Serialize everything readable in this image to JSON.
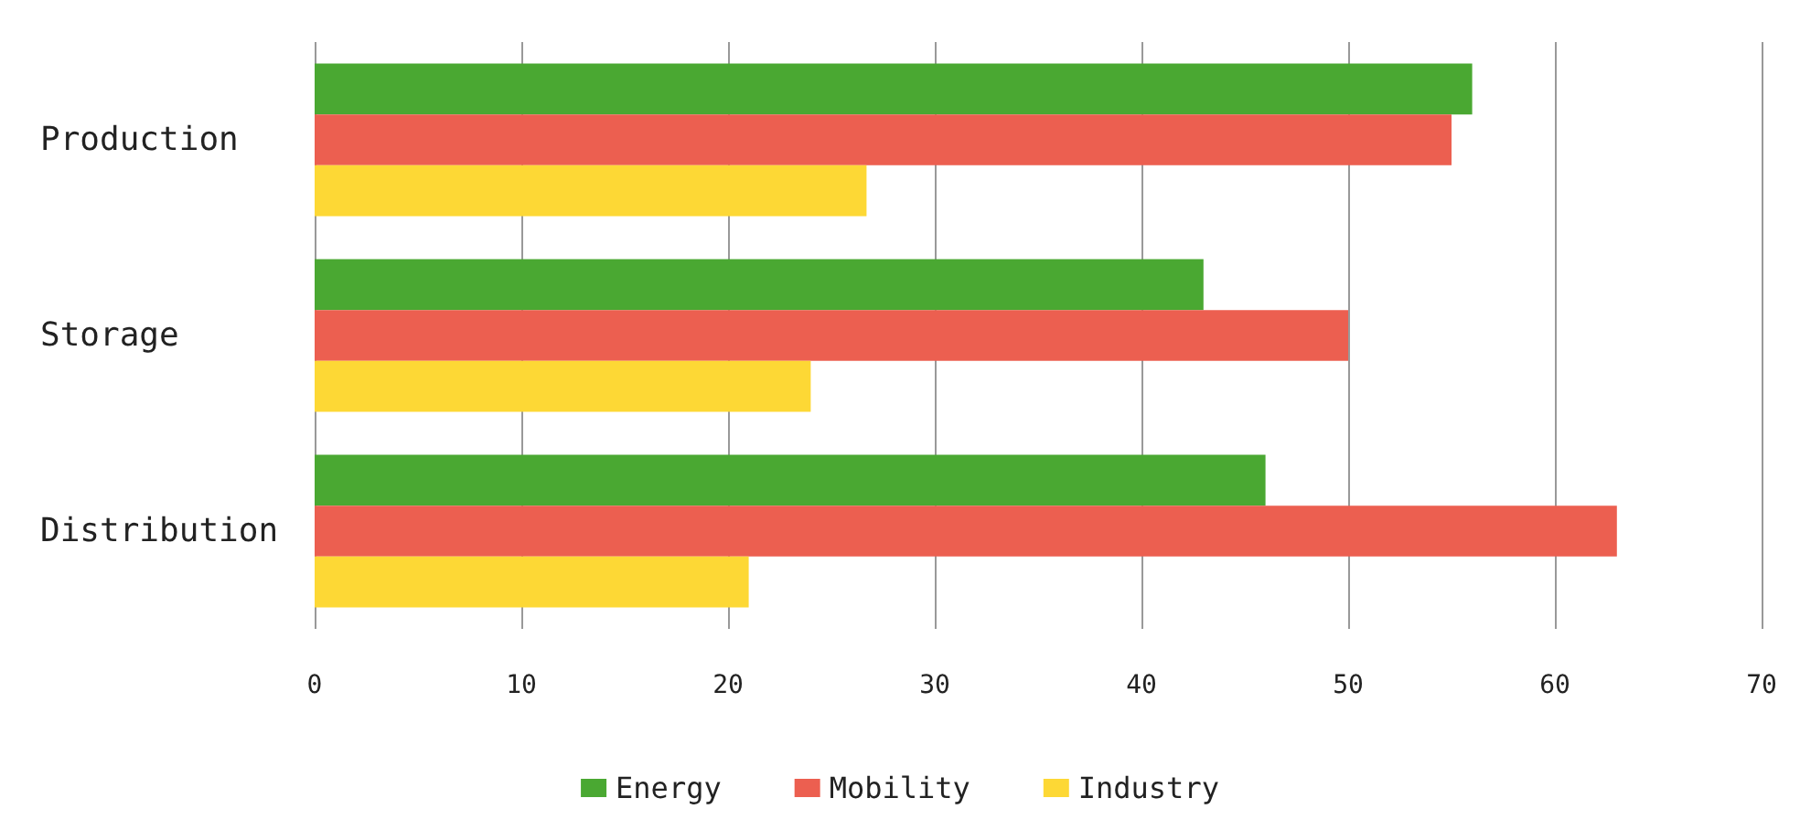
{
  "chart_data": {
    "type": "bar",
    "orientation": "horizontal",
    "categories": [
      "Production",
      "Storage",
      "Distribution"
    ],
    "series": [
      {
        "name": "Energy",
        "color": "#4aa832",
        "values": [
          56,
          43,
          46
        ]
      },
      {
        "name": "Mobility",
        "color": "#ec5f50",
        "values": [
          55,
          50,
          63
        ]
      },
      {
        "name": "Industry",
        "color": "#fdd835",
        "values": [
          26.7,
          24,
          21
        ]
      }
    ],
    "xlim": [
      0,
      70
    ],
    "xticks": [
      0,
      10,
      20,
      30,
      40,
      50,
      60,
      70
    ],
    "grid": "x",
    "legend": "bottom"
  }
}
